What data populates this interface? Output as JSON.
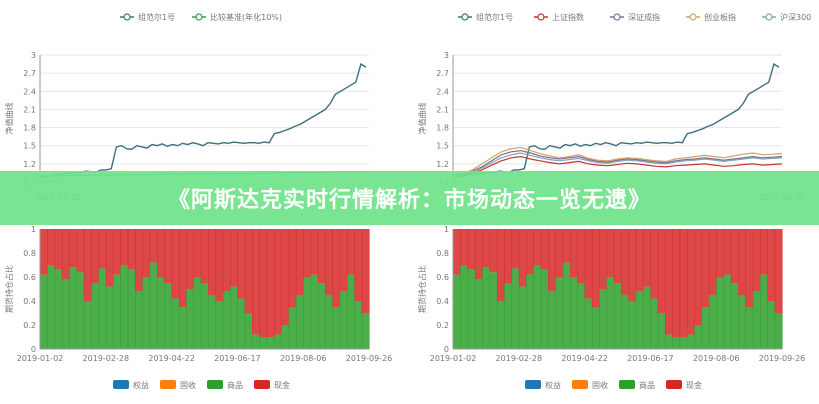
{
  "banner": {
    "title": "《阿斯达克实时行情解析：市场动态一览无遗》"
  },
  "colors": {
    "nav_main": "#3d6f7e",
    "benchmark": "#2e9d4a",
    "sh": "#c0392b",
    "sz": "#7d6b8e",
    "cy": "#d4a06a",
    "hs300": "#7fa5b8",
    "equity": "#1f77b4",
    "bond": "#ff7f0e",
    "commodity": "#2ca02c",
    "cash": "#d62728",
    "axis": "#999999",
    "grid": "#e6e6e6"
  },
  "chart_data": [
    {
      "type": "line",
      "legend": [
        "组范尔1号",
        "比较基准(年化10%)"
      ],
      "ylabel": "净值曲线",
      "yticks": [
        "3",
        "2.7",
        "2.4",
        "2.1",
        "1.8",
        "1.5",
        "1.2",
        "0.9"
      ],
      "ylim": [
        0.9,
        3.0
      ],
      "xticks": [
        "2019-01-02"
      ],
      "x_range": [
        "2019-01-02",
        "2019-09-26"
      ],
      "series": [
        {
          "name": "组范尔1号",
          "values": [
            1.0,
            0.98,
            1.0,
            1.03,
            1.02,
            1.05,
            1.04,
            1.06,
            1.05,
            1.08,
            1.07,
            1.06,
            1.1,
            1.1,
            1.12,
            1.48,
            1.5,
            1.45,
            1.44,
            1.5,
            1.48,
            1.46,
            1.52,
            1.5,
            1.53,
            1.49,
            1.52,
            1.5,
            1.54,
            1.52,
            1.55,
            1.53,
            1.5,
            1.55,
            1.54,
            1.53,
            1.55,
            1.54,
            1.56,
            1.55,
            1.54,
            1.55,
            1.55,
            1.54,
            1.56,
            1.55,
            1.7,
            1.72,
            1.75,
            1.78,
            1.82,
            1.85,
            1.9,
            1.95,
            2.0,
            2.05,
            2.1,
            2.2,
            2.35,
            2.4,
            2.45,
            2.5,
            2.55,
            2.85,
            2.8
          ]
        },
        {
          "name": "比较基准(年化10%)",
          "values": [
            1.0,
            1.07
          ]
        }
      ]
    },
    {
      "type": "line",
      "legend": [
        "组范尔1号",
        "上证指数",
        "深证成指",
        "创业板指",
        "沪深300"
      ],
      "ylabel": "净值曲线",
      "yticks": [
        "3",
        "2.7",
        "2.4",
        "2.1",
        "1.8",
        "1.5",
        "1.2",
        "0.9"
      ],
      "ylim": [
        0.9,
        3.0
      ],
      "xticks": [
        "2019-09-26"
      ],
      "x_range": [
        "2019-01-02",
        "2019-09-26"
      ],
      "series": [
        {
          "name": "组范尔1号",
          "values": [
            1.0,
            0.98,
            1.0,
            1.03,
            1.02,
            1.05,
            1.04,
            1.06,
            1.05,
            1.08,
            1.07,
            1.06,
            1.1,
            1.1,
            1.12,
            1.48,
            1.5,
            1.45,
            1.44,
            1.5,
            1.48,
            1.46,
            1.52,
            1.5,
            1.53,
            1.49,
            1.52,
            1.5,
            1.54,
            1.52,
            1.55,
            1.53,
            1.5,
            1.55,
            1.54,
            1.53,
            1.55,
            1.54,
            1.56,
            1.55,
            1.54,
            1.55,
            1.55,
            1.54,
            1.56,
            1.55,
            1.7,
            1.72,
            1.75,
            1.78,
            1.82,
            1.85,
            1.9,
            1.95,
            2.0,
            2.05,
            2.1,
            2.2,
            2.35,
            2.4,
            2.45,
            2.5,
            2.55,
            2.85,
            2.8
          ]
        },
        {
          "name": "上证指数",
          "values": [
            1.0,
            1.02,
            1.05,
            1.1,
            1.18,
            1.25,
            1.3,
            1.32,
            1.28,
            1.25,
            1.22,
            1.2,
            1.22,
            1.24,
            1.2,
            1.18,
            1.17,
            1.19,
            1.21,
            1.2,
            1.18,
            1.16,
            1.15,
            1.17,
            1.18,
            1.19,
            1.2,
            1.18,
            1.16,
            1.17,
            1.19,
            1.2,
            1.18,
            1.19,
            1.2
          ]
        },
        {
          "name": "深证成指",
          "values": [
            1.0,
            1.03,
            1.08,
            1.15,
            1.25,
            1.35,
            1.4,
            1.42,
            1.38,
            1.33,
            1.3,
            1.28,
            1.3,
            1.32,
            1.27,
            1.24,
            1.23,
            1.26,
            1.28,
            1.27,
            1.25,
            1.23,
            1.22,
            1.25,
            1.27,
            1.28,
            1.3,
            1.28,
            1.26,
            1.28,
            1.3,
            1.32,
            1.3,
            1.31,
            1.32
          ]
        },
        {
          "name": "创业板指",
          "values": [
            1.0,
            1.04,
            1.1,
            1.2,
            1.3,
            1.4,
            1.45,
            1.47,
            1.42,
            1.37,
            1.33,
            1.3,
            1.32,
            1.35,
            1.29,
            1.26,
            1.25,
            1.28,
            1.3,
            1.29,
            1.27,
            1.25,
            1.24,
            1.28,
            1.3,
            1.32,
            1.34,
            1.32,
            1.3,
            1.33,
            1.36,
            1.38,
            1.35,
            1.36,
            1.37
          ]
        },
        {
          "name": "沪深300",
          "values": [
            1.0,
            1.03,
            1.07,
            1.13,
            1.22,
            1.3,
            1.35,
            1.38,
            1.34,
            1.3,
            1.27,
            1.25,
            1.27,
            1.29,
            1.25,
            1.22,
            1.21,
            1.24,
            1.26,
            1.25,
            1.23,
            1.21,
            1.2,
            1.23,
            1.25,
            1.26,
            1.28,
            1.26,
            1.24,
            1.26,
            1.28,
            1.3,
            1.28,
            1.29,
            1.3
          ]
        }
      ]
    },
    {
      "type": "area",
      "ylabel": "期货持仓占比",
      "yticks": [
        "1",
        "0.8",
        "0.6",
        "0.4",
        "0.2",
        "0"
      ],
      "ylim": [
        0,
        1
      ],
      "xticks": [
        "2019-01-02",
        "2019-02-28",
        "2019-04-22",
        "2019-06-17",
        "2019-08-06",
        "2019-09-26"
      ],
      "legend": [
        "权益",
        "固收",
        "商品",
        "现金"
      ],
      "series": [
        {
          "name": "商品",
          "values": [
            0.62,
            0.7,
            0.66,
            0.58,
            0.68,
            0.64,
            0.4,
            0.55,
            0.67,
            0.52,
            0.62,
            0.7,
            0.66,
            0.48,
            0.6,
            0.72,
            0.6,
            0.55,
            0.42,
            0.35,
            0.5,
            0.6,
            0.55,
            0.45,
            0.4,
            0.48,
            0.52,
            0.42,
            0.3,
            0.12,
            0.1,
            0.1,
            0.12,
            0.2,
            0.35,
            0.45,
            0.6,
            0.62,
            0.55,
            0.45,
            0.35,
            0.48,
            0.62,
            0.4,
            0.3
          ]
        },
        {
          "name": "现金",
          "values": [
            0.38,
            0.3,
            0.34,
            0.42,
            0.32,
            0.36,
            0.6,
            0.45,
            0.33,
            0.48,
            0.38,
            0.3,
            0.34,
            0.52,
            0.4,
            0.28,
            0.4,
            0.45,
            0.58,
            0.65,
            0.5,
            0.4,
            0.45,
            0.55,
            0.6,
            0.52,
            0.48,
            0.58,
            0.7,
            0.88,
            0.9,
            0.9,
            0.88,
            0.8,
            0.65,
            0.55,
            0.4,
            0.38,
            0.45,
            0.55,
            0.65,
            0.52,
            0.38,
            0.6,
            0.7
          ]
        }
      ]
    },
    {
      "type": "area",
      "ylabel": "期货持仓占比",
      "yticks": [
        "1",
        "0.8",
        "0.6",
        "0.4",
        "0.2",
        "0"
      ],
      "ylim": [
        0,
        1
      ],
      "xticks": [
        "2019-01-02",
        "2019-02-28",
        "2019-04-22",
        "2019-06-17",
        "2019-08-06",
        "2019-09-26"
      ],
      "legend": [
        "权益",
        "固收",
        "商品",
        "现金"
      ],
      "series": [
        {
          "name": "商品",
          "values": [
            0.62,
            0.7,
            0.66,
            0.58,
            0.68,
            0.64,
            0.4,
            0.55,
            0.67,
            0.52,
            0.62,
            0.7,
            0.66,
            0.48,
            0.6,
            0.72,
            0.6,
            0.55,
            0.42,
            0.35,
            0.5,
            0.6,
            0.55,
            0.45,
            0.4,
            0.48,
            0.52,
            0.42,
            0.3,
            0.12,
            0.1,
            0.1,
            0.12,
            0.2,
            0.35,
            0.45,
            0.6,
            0.62,
            0.55,
            0.45,
            0.35,
            0.48,
            0.62,
            0.4,
            0.3
          ]
        },
        {
          "name": "现金",
          "values": [
            0.38,
            0.3,
            0.34,
            0.42,
            0.32,
            0.36,
            0.6,
            0.45,
            0.33,
            0.48,
            0.38,
            0.3,
            0.34,
            0.52,
            0.4,
            0.28,
            0.4,
            0.45,
            0.58,
            0.65,
            0.5,
            0.4,
            0.45,
            0.55,
            0.6,
            0.52,
            0.48,
            0.58,
            0.7,
            0.88,
            0.9,
            0.9,
            0.88,
            0.8,
            0.65,
            0.55,
            0.4,
            0.38,
            0.45,
            0.55,
            0.65,
            0.52,
            0.38,
            0.6,
            0.7
          ]
        }
      ]
    }
  ]
}
